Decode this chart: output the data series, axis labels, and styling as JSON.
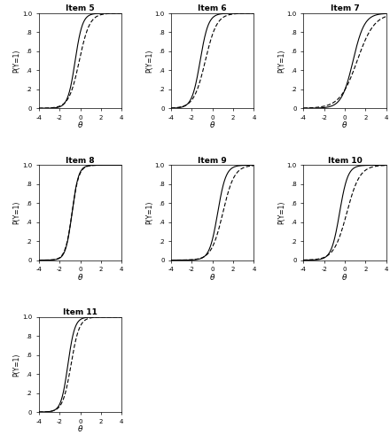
{
  "items": [
    "Item 5",
    "Item 6",
    "Item 7",
    "Item 8",
    "Item 9",
    "Item 10",
    "Item 11"
  ],
  "xlim": [
    -4,
    4
  ],
  "ylim": [
    0,
    1.0
  ],
  "xlabel": "θ",
  "ylabel": "P(Y=1)",
  "xticks": [
    -4,
    -2,
    0,
    2,
    4
  ],
  "yticks": [
    0,
    0.2,
    0.4,
    0.6,
    0.8,
    1.0
  ],
  "ytick_labels": [
    "0",
    ".2",
    ".4",
    ".6",
    ".8",
    "1.0"
  ],
  "background": "#ffffff",
  "line1_color": "#000000",
  "line2_color": "#000000",
  "items_params": [
    {
      "a1": 2.8,
      "b1": -0.5,
      "a2": 2.0,
      "b2": -0.1
    },
    {
      "a1": 2.5,
      "b1": -1.2,
      "a2": 1.8,
      "b2": -0.7
    },
    {
      "a1": 1.8,
      "b1": 0.8,
      "a2": 1.2,
      "b2": 1.2
    },
    {
      "a1": 3.2,
      "b1": -0.8,
      "a2": 3.0,
      "b2": -0.8
    },
    {
      "a1": 2.5,
      "b1": 0.5,
      "a2": 1.8,
      "b2": 1.0
    },
    {
      "a1": 2.5,
      "b1": -0.5,
      "a2": 1.6,
      "b2": 0.2
    },
    {
      "a1": 3.0,
      "b1": -1.2,
      "a2": 2.5,
      "b2": -0.9
    }
  ]
}
